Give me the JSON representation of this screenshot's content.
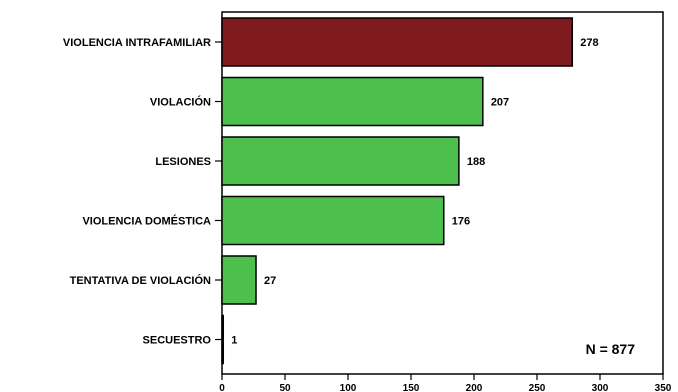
{
  "chart_data": {
    "type": "bar",
    "orientation": "horizontal",
    "categories": [
      "VIOLENCIA INTRAFAMILIAR",
      "VIOLACIÓN",
      "LESIONES",
      "VIOLENCIA DOMÉSTICA",
      "TENTATIVA DE VIOLACIÓN",
      "SECUESTRO"
    ],
    "values": [
      278,
      207,
      188,
      176,
      27,
      1
    ],
    "value_labels": [
      "278",
      "207",
      "188",
      "176",
      "27",
      "1"
    ],
    "bar_colors": [
      "#7f1a1e",
      "#4cbf4c",
      "#4cbf4c",
      "#4cbf4c",
      "#4cbf4c",
      "#4cbf4c"
    ],
    "xlim": [
      0,
      350
    ],
    "x_ticks": [
      0,
      50,
      100,
      150,
      200,
      250,
      300,
      350
    ],
    "x_tick_labels": [
      "0",
      "50",
      "100",
      "150",
      "200",
      "250",
      "300",
      "350"
    ],
    "annotation": "N = 877",
    "grid": false,
    "legend": "none"
  }
}
